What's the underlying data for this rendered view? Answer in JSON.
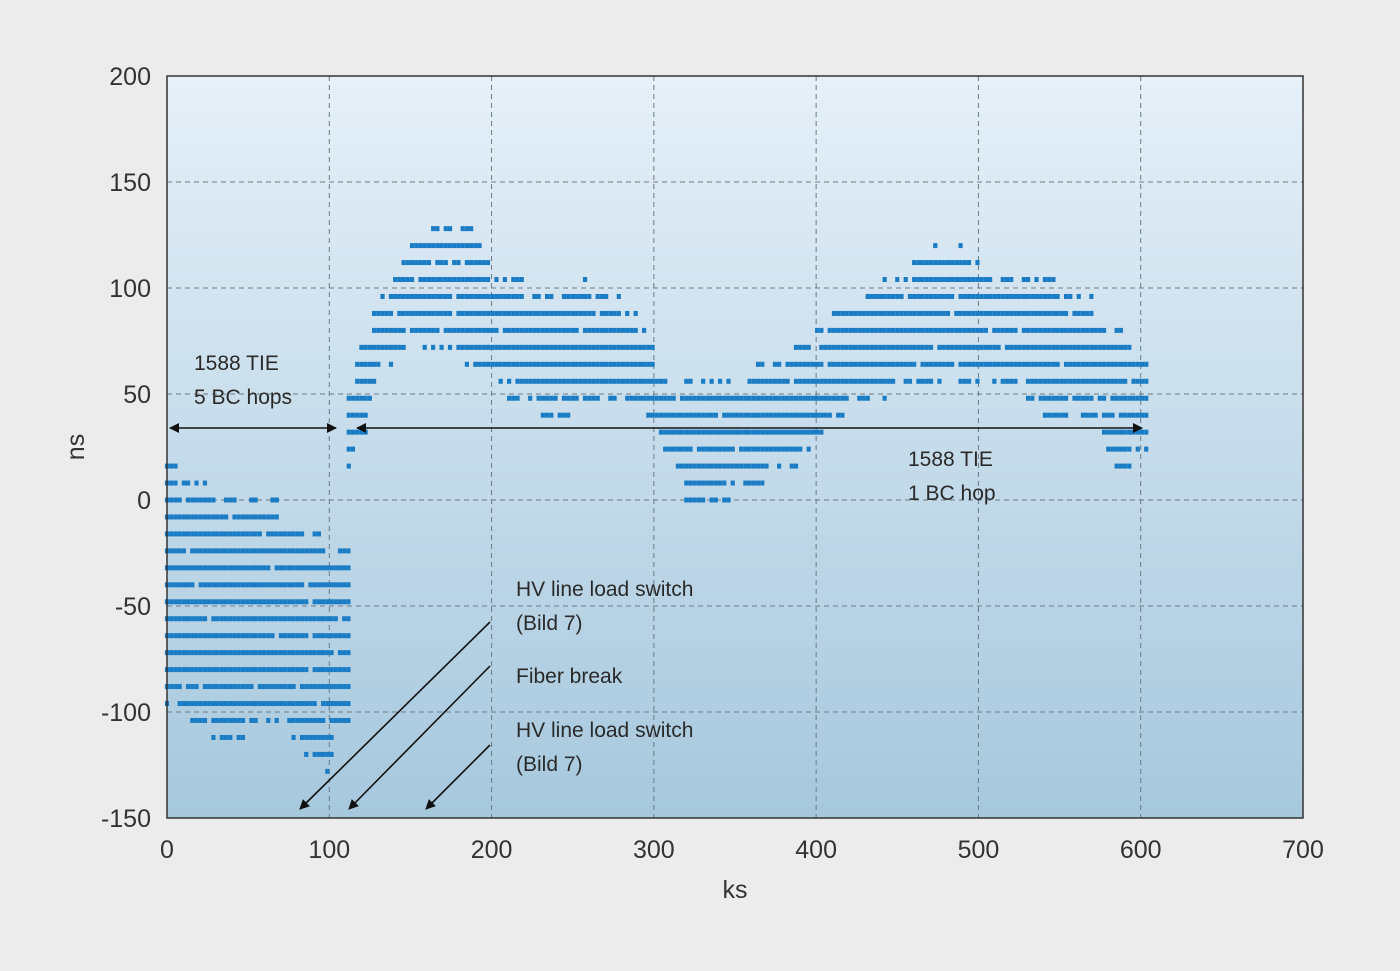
{
  "chart_data": {
    "type": "scatter",
    "title": "",
    "xlabel": "ks",
    "ylabel": "ns",
    "xlim": [
      0,
      700
    ],
    "ylim": [
      -150,
      200
    ],
    "xticks": [
      "0",
      "100",
      "200",
      "300",
      "400",
      "500",
      "600",
      "700"
    ],
    "yticks": [
      "-150",
      "-100",
      "-50",
      "0",
      "50",
      "100",
      "150",
      "200"
    ],
    "grid": "dashed",
    "colors": {
      "points": "#1a7cc4",
      "plot_top": "#e6f0f8",
      "plot_bottom": "#a6c8dd",
      "grid": "#6b7a86"
    },
    "quantization_step_ns": 8,
    "envelope_segment_1": {
      "x": [
        0,
        10,
        25,
        40,
        55,
        70,
        85,
        95,
        100,
        105,
        112
      ],
      "y_high": [
        24,
        16,
        8,
        0,
        0,
        0,
        -8,
        -16,
        -24,
        -24,
        -24
      ],
      "y_low": [
        -96,
        -104,
        -110,
        -120,
        -104,
        -104,
        -120,
        -136,
        -128,
        -112,
        -104
      ]
    },
    "envelope_segment_2": {
      "x": [
        112,
        120,
        130,
        140,
        150,
        160,
        170,
        180,
        190,
        200,
        210,
        220,
        230,
        240,
        250,
        260,
        270,
        280,
        290,
        300,
        310,
        320,
        330,
        340,
        350,
        360,
        370,
        380,
        390,
        400,
        410,
        420,
        430,
        440,
        450,
        460,
        470,
        480,
        490,
        500,
        510,
        520,
        530,
        540,
        550,
        560,
        570,
        580,
        590,
        600,
        605
      ],
      "y_high": [
        48,
        80,
        96,
        104,
        120,
        128,
        128,
        136,
        128,
        112,
        104,
        104,
        96,
        96,
        104,
        104,
        100,
        96,
        88,
        72,
        56,
        56,
        56,
        56,
        56,
        64,
        64,
        72,
        72,
        80,
        88,
        96,
        104,
        104,
        104,
        112,
        120,
        128,
        120,
        112,
        104,
        112,
        104,
        104,
        104,
        96,
        96,
        88,
        80,
        72,
        64
      ],
      "y_low": [
        16,
        24,
        56,
        64,
        72,
        72,
        72,
        64,
        64,
        56,
        48,
        48,
        40,
        32,
        40,
        48,
        48,
        48,
        40,
        32,
        16,
        0,
        0,
        0,
        0,
        8,
        8,
        16,
        16,
        24,
        32,
        40,
        48,
        48,
        48,
        56,
        56,
        56,
        56,
        56,
        56,
        56,
        48,
        40,
        40,
        40,
        40,
        24,
        8,
        24,
        24
      ]
    },
    "annotations": {
      "tie_5bc_line1": "1588 TIE",
      "tie_5bc_line2": "5 BC hops",
      "tie_1bc_line1": "1588 TIE",
      "tie_1bc_line2": "1  BC hop",
      "hv_switch_1_line1": "HV line load switch",
      "hv_switch_1_line2": "(Bild 7)",
      "fiber_break": "Fiber break",
      "hv_switch_2_line1": "HV line load switch",
      "hv_switch_2_line2": "(Bild 7)"
    }
  }
}
